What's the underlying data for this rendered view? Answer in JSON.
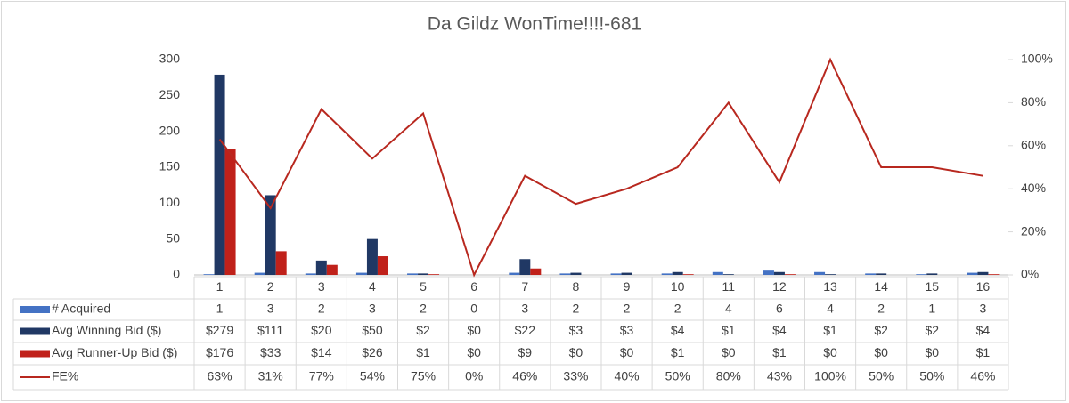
{
  "chart_data": {
    "type": "bar",
    "title": "Da Gildz WonTime!!!!-681",
    "categories": [
      "1",
      "2",
      "3",
      "4",
      "5",
      "6",
      "7",
      "8",
      "9",
      "10",
      "11",
      "12",
      "13",
      "14",
      "15",
      "16"
    ],
    "series": [
      {
        "name": "# Acquired",
        "color": "#4472c4",
        "values": [
          1,
          3,
          2,
          3,
          2,
          0,
          3,
          2,
          2,
          2,
          4,
          6,
          4,
          2,
          1,
          3
        ]
      },
      {
        "name": "Avg Winning Bid ($)",
        "color": "#203864",
        "values": [
          279,
          111,
          20,
          50,
          2,
          0,
          22,
          3,
          3,
          4,
          1,
          4,
          1,
          2,
          2,
          4
        ],
        "value_labels": [
          "$279",
          "$111",
          "$20",
          "$50",
          "$2",
          "$0",
          "$22",
          "$3",
          "$3",
          "$4",
          "$1",
          "$4",
          "$1",
          "$2",
          "$2",
          "$4"
        ]
      },
      {
        "name": "Avg Runner-Up Bid ($)",
        "color": "#c0211a",
        "values": [
          176,
          33,
          14,
          26,
          1,
          0,
          9,
          0,
          0,
          1,
          0,
          1,
          0,
          0,
          0,
          1
        ],
        "value_labels": [
          "$176",
          "$33",
          "$14",
          "$26",
          "$1",
          "$0",
          "$9",
          "$0",
          "$0",
          "$1",
          "$0",
          "$1",
          "$0",
          "$0",
          "$0",
          "$1"
        ]
      },
      {
        "name": "FE%",
        "color": "#b8281f",
        "type": "line",
        "axis": "y2",
        "values": [
          63,
          31,
          77,
          54,
          75,
          0,
          46,
          33,
          40,
          50,
          80,
          43,
          100,
          50,
          50,
          46
        ],
        "value_labels": [
          "63%",
          "31%",
          "77%",
          "54%",
          "75%",
          "0%",
          "46%",
          "33%",
          "40%",
          "50%",
          "80%",
          "43%",
          "100%",
          "50%",
          "50%",
          "46%"
        ]
      }
    ],
    "ylim": [
      0,
      300
    ],
    "yticks": [
      0,
      50,
      100,
      150,
      200,
      250,
      300
    ],
    "y2lim": [
      0,
      100
    ],
    "y2ticks": [
      {
        "value": 0,
        "label": "0%"
      },
      {
        "value": 20,
        "label": "20%"
      },
      {
        "value": 40,
        "label": "40%"
      },
      {
        "value": 60,
        "label": "60%"
      },
      {
        "value": 80,
        "label": "80%"
      },
      {
        "value": 100,
        "label": "100%"
      }
    ],
    "grid": false
  }
}
